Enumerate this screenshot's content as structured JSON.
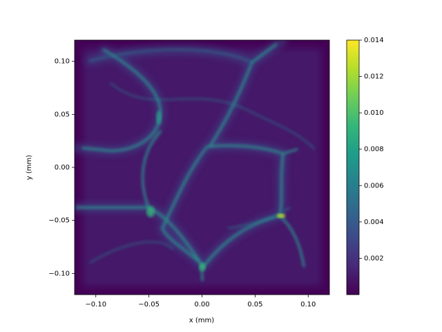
{
  "chart_data": {
    "type": "heatmap",
    "xlabel": "x (mm)",
    "ylabel": "y (mm)",
    "xlim": [
      -0.12,
      0.12
    ],
    "xticks": [
      {
        "value": -0.1,
        "label": "−0.10"
      },
      {
        "value": -0.05,
        "label": "−0.05"
      },
      {
        "value": 0,
        "label": "0.00"
      },
      {
        "value": 0.05,
        "label": "0.05"
      },
      {
        "value": 0.1,
        "label": "0.10"
      }
    ],
    "ylim": [
      -0.12,
      0.12
    ],
    "yticks": [
      {
        "value": -0.1,
        "label": "−0.10"
      },
      {
        "value": -0.05,
        "label": "−0.05"
      },
      {
        "value": 0,
        "label": "0.00"
      },
      {
        "value": 0.05,
        "label": "0.05"
      },
      {
        "value": 0.1,
        "label": "0.10"
      }
    ],
    "colormap": "viridis",
    "clim": [
      0,
      0.014
    ],
    "cticks": [
      0.002,
      0.004,
      0.006,
      0.008,
      {
        "value": 0.01,
        "label": "0.010"
      },
      0.012,
      0.014
    ]
  }
}
